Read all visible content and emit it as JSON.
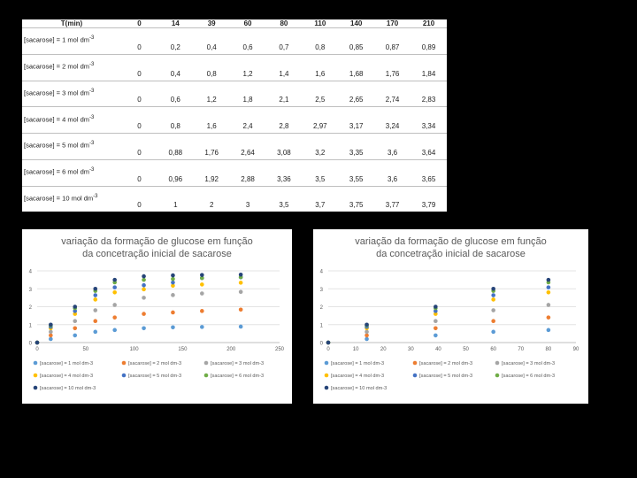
{
  "table": {
    "header_label": "T(min)",
    "times": [
      "0",
      "14",
      "39",
      "60",
      "80",
      "110",
      "140",
      "170",
      "210"
    ],
    "rows": [
      {
        "label": "[sacarose] = 1 mol dm",
        "sup": "-3",
        "values": [
          "0",
          "0,2",
          "0,4",
          "0,6",
          "0,7",
          "0,8",
          "0,85",
          "0,87",
          "0,89"
        ]
      },
      {
        "label": "[sacarose] = 2 mol dm",
        "sup": "-3",
        "values": [
          "0",
          "0,4",
          "0,8",
          "1,2",
          "1,4",
          "1,6",
          "1,68",
          "1,76",
          "1,84"
        ]
      },
      {
        "label": "[sacarose] = 3 mol dm",
        "sup": "-3",
        "values": [
          "0",
          "0,6",
          "1,2",
          "1,8",
          "2,1",
          "2,5",
          "2,65",
          "2,74",
          "2,83"
        ]
      },
      {
        "label": "[sacarose] = 4 mol dm",
        "sup": "-3",
        "values": [
          "0",
          "0,8",
          "1,6",
          "2,4",
          "2,8",
          "2,97",
          "3,17",
          "3,24",
          "3,34"
        ]
      },
      {
        "label": "[sacarose] = 5 mol dm",
        "sup": "-3",
        "values": [
          "0",
          "0,88",
          "1,76",
          "2,64",
          "3,08",
          "3,2",
          "3,35",
          "3,6",
          "3,64"
        ]
      },
      {
        "label": "[sacarose] = 6 mol dm",
        "sup": "-3",
        "values": [
          "0",
          "0,96",
          "1,92",
          "2,88",
          "3,36",
          "3,5",
          "3,55",
          "3,6",
          "3,65"
        ]
      },
      {
        "label": "[sacarose] = 10 mol dm",
        "sup": "-3",
        "values": [
          "0",
          "1",
          "2",
          "3",
          "3,5",
          "3,7",
          "3,75",
          "3,77",
          "3,79"
        ]
      }
    ]
  },
  "chart_data": [
    {
      "type": "scatter",
      "title": "variação da formação de glucose em função da concetração inicial de sacarose",
      "x": [
        0,
        14,
        39,
        60,
        80,
        110,
        140,
        170,
        210
      ],
      "xlim": [
        0,
        250
      ],
      "xticks": [
        0,
        50,
        100,
        150,
        200,
        250
      ],
      "ylim": [
        0,
        4
      ],
      "yticks": [
        0,
        1,
        2,
        3,
        4
      ],
      "series": [
        {
          "name": "[sacarose] = 1 mol dm-3",
          "color": "#5b9bd5",
          "values": [
            0,
            0.2,
            0.4,
            0.6,
            0.7,
            0.8,
            0.85,
            0.87,
            0.89
          ]
        },
        {
          "name": "[sacarose] = 2 mol dm-3",
          "color": "#ed7d31",
          "values": [
            0,
            0.4,
            0.8,
            1.2,
            1.4,
            1.6,
            1.68,
            1.76,
            1.84
          ]
        },
        {
          "name": "[sacarose] = 3 mol dm-3",
          "color": "#a5a5a5",
          "values": [
            0,
            0.6,
            1.2,
            1.8,
            2.1,
            2.5,
            2.65,
            2.74,
            2.83
          ]
        },
        {
          "name": "[sacarose] = 4 mol dm-3",
          "color": "#ffc000",
          "values": [
            0,
            0.8,
            1.6,
            2.4,
            2.8,
            2.97,
            3.17,
            3.24,
            3.34
          ]
        },
        {
          "name": "[sacarose] = 5 mol dm-3",
          "color": "#4472c4",
          "values": [
            0,
            0.88,
            1.76,
            2.64,
            3.08,
            3.2,
            3.35,
            3.6,
            3.64
          ]
        },
        {
          "name": "[sacarose] = 6 mol dm-3",
          "color": "#70ad47",
          "values": [
            0,
            0.96,
            1.92,
            2.88,
            3.36,
            3.5,
            3.55,
            3.6,
            3.65
          ]
        },
        {
          "name": "[sacarose] = 10 mol dm-3",
          "color": "#264478",
          "values": [
            0,
            1,
            2,
            3,
            3.5,
            3.7,
            3.75,
            3.77,
            3.79
          ]
        }
      ]
    },
    {
      "type": "scatter",
      "title": "variação da formação de glucose em função da concetração inicial de sacarose",
      "x": [
        0,
        14,
        39,
        60,
        80
      ],
      "xlim": [
        0,
        90
      ],
      "xticks": [
        0,
        10,
        20,
        30,
        40,
        50,
        60,
        70,
        80,
        90
      ],
      "ylim": [
        0,
        4
      ],
      "yticks": [
        0,
        1,
        2,
        3,
        4
      ],
      "series": [
        {
          "name": "[sacarose] = 1 mol dm-3",
          "color": "#5b9bd5",
          "values": [
            0,
            0.2,
            0.4,
            0.6,
            0.7
          ]
        },
        {
          "name": "[sacarose] = 2 mol dm-3",
          "color": "#ed7d31",
          "values": [
            0,
            0.4,
            0.8,
            1.2,
            1.4
          ]
        },
        {
          "name": "[sacarose] = 3 mol dm-3",
          "color": "#a5a5a5",
          "values": [
            0,
            0.6,
            1.2,
            1.8,
            2.1
          ]
        },
        {
          "name": "[sacarose] = 4 mol dm-3",
          "color": "#ffc000",
          "values": [
            0,
            0.8,
            1.6,
            2.4,
            2.8
          ]
        },
        {
          "name": "[sacarose] = 5 mol dm-3",
          "color": "#4472c4",
          "values": [
            0,
            0.88,
            1.76,
            2.64,
            3.08
          ]
        },
        {
          "name": "[sacarose] = 6 mol dm-3",
          "color": "#70ad47",
          "values": [
            0,
            0.96,
            1.92,
            2.88,
            3.36
          ]
        },
        {
          "name": "[sacarose] = 10 mol dm-3",
          "color": "#264478",
          "values": [
            0,
            1,
            2,
            3,
            3.5
          ]
        }
      ]
    }
  ]
}
